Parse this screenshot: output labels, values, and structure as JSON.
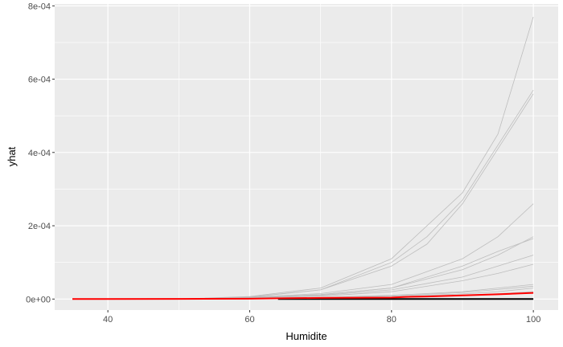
{
  "chart_data": {
    "type": "line",
    "title": "",
    "xlabel": "Humidite",
    "ylabel": "yhat",
    "xlim": [
      32.5,
      103.5
    ],
    "ylim": [
      -3e-05,
      0.000805
    ],
    "x_ticks": [
      40,
      60,
      80,
      100
    ],
    "x_tick_labels": [
      "40",
      "60",
      "80",
      "100"
    ],
    "y_ticks": [
      0,
      0.0002,
      0.0004,
      0.0006,
      0.0008
    ],
    "y_tick_labels": [
      "0e+00",
      "2e-04",
      "4e-04",
      "6e-04",
      "8e-04"
    ],
    "grid": true,
    "legend": "none",
    "colors": {
      "panel": "#ebebeb",
      "grid": "#ffffff",
      "series_gray": "#bdbdbd",
      "mean_line": "#ff0000",
      "base_line": "#000000"
    },
    "series": [
      {
        "values": [
          [
            50,
            0.0
          ],
          [
            60,
            7e-06
          ],
          [
            70,
            3e-05
          ],
          [
            80,
            0.00011
          ],
          [
            85,
            0.0002
          ],
          [
            90,
            0.00029
          ],
          [
            95,
            0.00045
          ],
          [
            100,
            0.00077
          ]
        ]
      },
      {
        "values": [
          [
            50,
            0.0
          ],
          [
            60,
            6e-06
          ],
          [
            70,
            2.5e-05
          ],
          [
            80,
            9e-05
          ],
          [
            85,
            0.00015
          ],
          [
            90,
            0.00026
          ],
          [
            95,
            0.00041
          ],
          [
            100,
            0.00056
          ]
        ]
      },
      {
        "values": [
          [
            50,
            0.0
          ],
          [
            60,
            5e-06
          ],
          [
            70,
            2.5e-05
          ],
          [
            80,
            0.0001
          ],
          [
            85,
            0.00017
          ],
          [
            90,
            0.00027
          ],
          [
            95,
            0.00042
          ],
          [
            100,
            0.00057
          ]
        ]
      },
      {
        "values": [
          [
            50,
            0.0
          ],
          [
            60,
            5e-06
          ],
          [
            70,
            1.5e-05
          ],
          [
            80,
            4e-05
          ],
          [
            90,
            0.00011
          ],
          [
            95,
            0.00017
          ],
          [
            100,
            0.00026
          ]
        ]
      },
      {
        "values": [
          [
            50,
            0.0
          ],
          [
            60,
            4e-06
          ],
          [
            70,
            1.2e-05
          ],
          [
            80,
            3e-05
          ],
          [
            90,
            8e-05
          ],
          [
            95,
            0.00012
          ],
          [
            100,
            0.00017
          ]
        ]
      },
      {
        "values": [
          [
            50,
            0.0
          ],
          [
            60,
            4e-06
          ],
          [
            70,
            1.2e-05
          ],
          [
            80,
            3e-05
          ],
          [
            90,
            9e-05
          ],
          [
            95,
            0.00013
          ],
          [
            100,
            0.000165
          ]
        ]
      },
      {
        "values": [
          [
            50,
            0.0
          ],
          [
            60,
            3e-06
          ],
          [
            70,
            1e-05
          ],
          [
            80,
            2.5e-05
          ],
          [
            90,
            6e-05
          ],
          [
            95,
            9e-05
          ],
          [
            100,
            0.00012
          ]
        ]
      },
      {
        "values": [
          [
            50,
            0.0
          ],
          [
            60,
            3e-06
          ],
          [
            70,
            8e-06
          ],
          [
            80,
            2e-05
          ],
          [
            90,
            5e-05
          ],
          [
            95,
            7e-05
          ],
          [
            100,
            9.5e-05
          ]
        ]
      },
      {
        "values": [
          [
            50,
            0.0
          ],
          [
            60,
            2e-06
          ],
          [
            70,
            5e-06
          ],
          [
            80,
            1e-05
          ],
          [
            90,
            2e-05
          ],
          [
            95,
            3e-05
          ],
          [
            100,
            4e-05
          ]
        ]
      },
      {
        "values": [
          [
            50,
            0.0
          ],
          [
            60,
            2e-06
          ],
          [
            70,
            4e-06
          ],
          [
            80,
            8e-06
          ],
          [
            90,
            1.8e-05
          ],
          [
            95,
            2.6e-05
          ],
          [
            100,
            3.5e-05
          ]
        ]
      },
      {
        "values": [
          [
            50,
            0.0
          ],
          [
            60,
            1e-06
          ],
          [
            70,
            3e-06
          ],
          [
            80,
            6e-06
          ],
          [
            90,
            1.4e-05
          ],
          [
            95,
            2e-05
          ],
          [
            100,
            3e-05
          ]
        ]
      },
      {
        "values": [
          [
            50,
            0.0
          ],
          [
            60,
            1e-06
          ],
          [
            70,
            2e-06
          ],
          [
            80,
            4e-06
          ],
          [
            90,
            1e-05
          ],
          [
            95,
            1.5e-05
          ],
          [
            100,
            2e-05
          ]
        ]
      }
    ],
    "mean_line": [
      [
        35,
        0.0
      ],
      [
        50,
        5e-07
      ],
      [
        60,
        1e-06
      ],
      [
        64,
        2e-06
      ],
      [
        70,
        3e-06
      ],
      [
        80,
        4e-06
      ],
      [
        82,
        6e-06
      ],
      [
        85,
        7e-06
      ],
      [
        90,
        1e-05
      ],
      [
        95,
        1.3e-05
      ],
      [
        100,
        1.7e-05
      ]
    ],
    "base_line": [
      [
        64,
        0.0
      ],
      [
        100,
        0.0
      ]
    ]
  }
}
